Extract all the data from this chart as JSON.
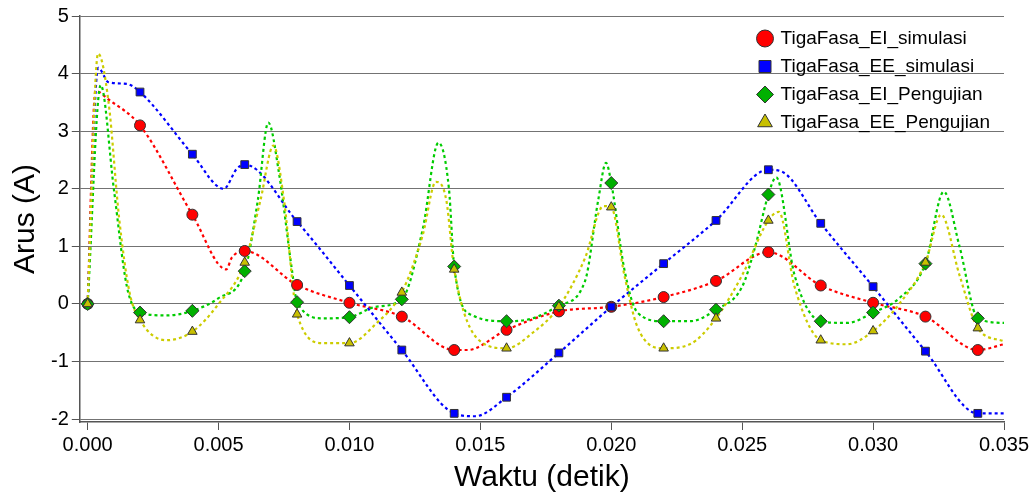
{
  "chart_data": {
    "type": "line",
    "xlabel": "Waktu (detik)",
    "ylabel": "Arus (A)",
    "xlim": [
      -0.0003,
      0.035
    ],
    "ylim": [
      -2.05,
      5
    ],
    "xticks": [
      {
        "value": 0,
        "label": "0.000"
      },
      {
        "value": 0.005,
        "label": "0.005"
      },
      {
        "value": 0.01,
        "label": "0.010"
      },
      {
        "value": 0.015,
        "label": "0.015"
      },
      {
        "value": 0.02,
        "label": "0.020"
      },
      {
        "value": 0.025,
        "label": "0.025"
      },
      {
        "value": 0.03,
        "label": "0.030"
      },
      {
        "value": 0.035,
        "label": "0.035"
      }
    ],
    "yticks": [
      -2,
      -1,
      0,
      1,
      2,
      3,
      4,
      5
    ],
    "grid": "y",
    "legend": "top right",
    "line_style": "dashed",
    "series": [
      {
        "color": "#ff0000",
        "marker": "none",
        "x": [
          0,
          0.0003,
          0.0008,
          0.002,
          0.004,
          0.0053,
          0.0055,
          0.006,
          0.008,
          0.01,
          0.012,
          0.014,
          0.0145,
          0.016,
          0.018,
          0.02,
          0.022,
          0.024,
          0.026,
          0.028,
          0.03,
          0.032,
          0.034,
          0.035
        ],
        "values": [
          0,
          3.7,
          3.55,
          3.1,
          1.55,
          0.6,
          0.8,
          0.92,
          0.33,
          0.02,
          -0.22,
          -0.8,
          -0.8,
          -0.45,
          -0.13,
          -0.05,
          0.12,
          0.4,
          0.9,
          0.32,
          0.02,
          -0.22,
          -0.8,
          -0.7
        ]
      },
      {
        "color": "#0000ff",
        "marker": "none",
        "x": [
          0,
          0.0004,
          0.0008,
          0.0015,
          0.002,
          0.004,
          0.0052,
          0.0057,
          0.006,
          0.008,
          0.01,
          0.012,
          0.014,
          0.0148,
          0.016,
          0.018,
          0.02,
          0.022,
          0.024,
          0.026,
          0.0265,
          0.028,
          0.03,
          0.032,
          0.034,
          0.035
        ],
        "values": [
          0,
          4.1,
          3.85,
          3.82,
          3.68,
          2.6,
          2,
          2.35,
          2.42,
          1.43,
          0.32,
          -0.8,
          -1.9,
          -1.95,
          -1.62,
          -0.85,
          -0.05,
          0.7,
          1.45,
          2.33,
          2.3,
          1.4,
          0.3,
          -0.82,
          -1.9,
          -1.9
        ]
      },
      {
        "color": "#00cc00",
        "marker": "none",
        "x": [
          0,
          0.0005,
          0.001,
          0.0015,
          0.002,
          0.003,
          0.004,
          0.005,
          0.006,
          0.0065,
          0.0069,
          0.0073,
          0.0078,
          0.008,
          0.009,
          0.01,
          0.011,
          0.012,
          0.0128,
          0.0134,
          0.0138,
          0.014,
          0.0147,
          0.016,
          0.017,
          0.018,
          0.019,
          0.0195,
          0.0198,
          0.02,
          0.0205,
          0.021,
          0.022,
          0.023,
          0.024,
          0.025,
          0.0255,
          0.026,
          0.0263,
          0.027,
          0.028,
          0.029,
          0.03,
          0.031,
          0.032,
          0.0327,
          0.0333,
          0.034,
          0.035
        ],
        "values": [
          0,
          3.8,
          2,
          0.3,
          -0.15,
          -0.2,
          -0.12,
          0.1,
          0.57,
          1.8,
          3.15,
          2.3,
          0.6,
          0.03,
          -0.25,
          -0.23,
          -0.05,
          0.08,
          1.3,
          2.8,
          2,
          0.65,
          -0.2,
          -0.3,
          -0.25,
          -0.03,
          0.4,
          1.8,
          2.45,
          2.1,
          0.6,
          -0.15,
          -0.3,
          -0.3,
          -0.1,
          0.3,
          1,
          1.9,
          2.2,
          0.5,
          -0.3,
          -0.33,
          -0.15,
          0.1,
          0.7,
          1.95,
          1,
          -0.25,
          -0.33
        ]
      },
      {
        "color": "#cccc00",
        "marker": "none",
        "x": [
          0,
          0.0004,
          0.0008,
          0.0012,
          0.0016,
          0.002,
          0.003,
          0.004,
          0.005,
          0.006,
          0.0066,
          0.0071,
          0.0075,
          0.008,
          0.009,
          0.01,
          0.011,
          0.012,
          0.0128,
          0.0133,
          0.0137,
          0.014,
          0.015,
          0.016,
          0.017,
          0.018,
          0.019,
          0.0197,
          0.02,
          0.0205,
          0.021,
          0.022,
          0.023,
          0.024,
          0.025,
          0.026,
          0.0264,
          0.027,
          0.028,
          0.029,
          0.03,
          0.031,
          0.032,
          0.0326,
          0.0333,
          0.034,
          0.035
        ],
        "values": [
          0,
          4.35,
          3.5,
          1.5,
          0.2,
          -0.28,
          -0.63,
          -0.48,
          0,
          0.72,
          1.8,
          2.75,
          1.8,
          -0.18,
          -0.68,
          -0.68,
          -0.35,
          0.2,
          1.2,
          2.12,
          1.8,
          0.6,
          -0.65,
          -0.77,
          -0.5,
          -0.05,
          0.8,
          1.7,
          1.68,
          0.5,
          -0.4,
          -0.77,
          -0.7,
          -0.25,
          0.5,
          1.45,
          1.6,
          0.3,
          -0.63,
          -0.7,
          -0.47,
          0,
          0.72,
          1.55,
          0.5,
          -0.42,
          -0.65
        ]
      },
      {
        "type": "scatter",
        "name": "TigaFasa_EI_simulasi",
        "color": "#ff0000",
        "marker": "circle",
        "x": [
          0,
          0.002,
          0.004,
          0.006,
          0.008,
          0.01,
          0.012,
          0.014,
          0.016,
          0.018,
          0.02,
          0.022,
          0.024,
          0.026,
          0.028,
          0.03,
          0.032,
          0.034
        ],
        "values": [
          0,
          3.1,
          1.55,
          0.92,
          0.33,
          0.02,
          -0.22,
          -0.8,
          -0.45,
          -0.13,
          -0.05,
          0.12,
          0.4,
          0.9,
          0.32,
          0.02,
          -0.22,
          -0.8
        ]
      },
      {
        "type": "scatter",
        "name": "TigaFasa_EE_simulasi",
        "color": "#0000ff",
        "marker": "square",
        "x": [
          0,
          0.002,
          0.004,
          0.006,
          0.008,
          0.01,
          0.012,
          0.014,
          0.016,
          0.018,
          0.02,
          0.022,
          0.024,
          0.026,
          0.028,
          0.03,
          0.032,
          0.034
        ],
        "values": [
          0,
          3.68,
          2.6,
          2.42,
          1.43,
          0.32,
          -0.8,
          -1.9,
          -1.62,
          -0.85,
          -0.05,
          0.7,
          1.45,
          2.33,
          1.4,
          0.3,
          -0.82,
          -1.9
        ]
      },
      {
        "type": "scatter",
        "name": "TigaFasa_EI_Pengujian",
        "color": "#00b000",
        "marker": "diamond",
        "x": [
          0,
          0.002,
          0.004,
          0.006,
          0.008,
          0.01,
          0.012,
          0.014,
          0.016,
          0.018,
          0.02,
          0.022,
          0.024,
          0.026,
          0.028,
          0.03,
          0.032,
          0.034
        ],
        "values": [
          0,
          -0.15,
          -0.12,
          0.57,
          0.03,
          -0.23,
          0.08,
          0.65,
          -0.3,
          -0.03,
          2.1,
          -0.3,
          -0.1,
          1.9,
          -0.3,
          -0.15,
          0.7,
          -0.25
        ]
      },
      {
        "type": "scatter",
        "name": "TigaFasa_EE_Pengujian",
        "color": "#c8c000",
        "marker": "triangle",
        "x": [
          0,
          0.002,
          0.004,
          0.006,
          0.008,
          0.01,
          0.012,
          0.014,
          0.016,
          0.018,
          0.02,
          0.022,
          0.024,
          0.026,
          0.028,
          0.03,
          0.032,
          0.034
        ],
        "values": [
          0,
          -0.28,
          -0.48,
          0.72,
          -0.18,
          -0.68,
          0.2,
          0.6,
          -0.77,
          -0.05,
          1.68,
          -0.77,
          -0.25,
          1.45,
          -0.63,
          -0.47,
          0.72,
          -0.42
        ]
      }
    ]
  }
}
